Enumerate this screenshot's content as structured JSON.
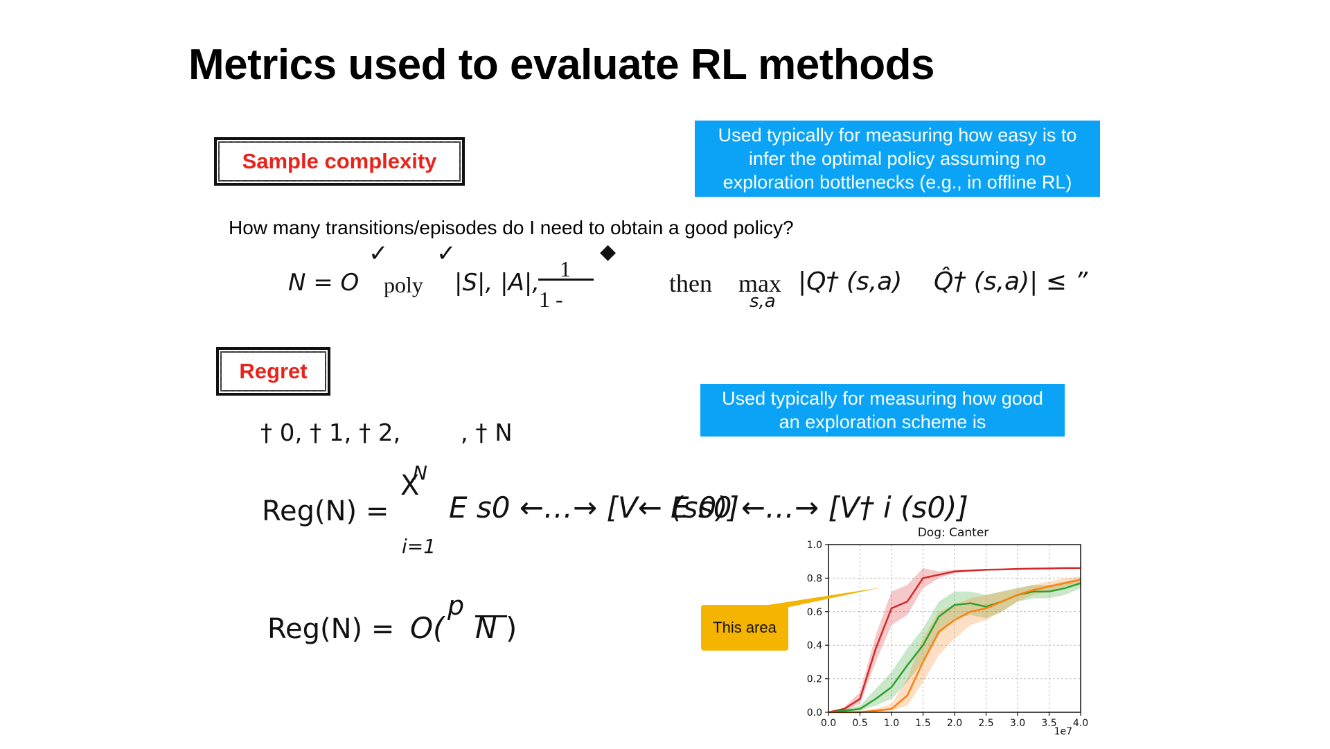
{
  "title": "Metrics used to evaluate RL methods",
  "sections": {
    "sample_complexity": {
      "label": "Sample complexity",
      "note": "Used typically for measuring how easy is to infer the optimal policy assuming no exploration bottlenecks (e.g., in offline RL)",
      "note_lines": [
        "Used typically for measuring how easy is to",
        "infer the optimal policy assuming no",
        "exploration bottlenecks (e.g., in offline RL)"
      ],
      "question": "How many transitions/episodes do I need to obtain a good policy?",
      "formula": {
        "lhs": "N = O",
        "poly": "poly",
        "args": "|S|, |A|,",
        "frac_num": "1",
        "frac_den": "1 -",
        "then": "then",
        "max": "max",
        "max_sub": "s,a",
        "rhs": "|Q† (s,a)    Q̂† (s,a)| ≤ ”",
        "marks": [
          "✓",
          "✓",
          "◆"
        ]
      }
    },
    "regret": {
      "label": "Regret",
      "note": "Used typically for measuring how good an exploration scheme is",
      "note_lines": [
        "Used typically for measuring how good",
        "an exploration scheme is"
      ],
      "sequence": "† 0, † 1, † 2,        , † N",
      "formula1": {
        "lhs": "Reg(N) =",
        "sum_top": "N",
        "sum_sym": "X",
        "sum_bottom": "i=1",
        "term1": "E s0 ←…→ [V← (s0)]",
        "term2": "E s0 ←…→ [V† i (s0)]"
      },
      "formula2": {
        "lhs": "Reg(N) =",
        "rhs": "O(",
        "sqrt_p": "p",
        "sqrt_arg": "N",
        "close": ")"
      }
    }
  },
  "callout": {
    "text": "This area",
    "color": "#f5b400"
  },
  "chart_data": {
    "type": "line",
    "title": "Dog: Canter",
    "xlabel": "",
    "ylabel": "",
    "x_multiplier_label": "1e7",
    "xlim": [
      0.0,
      4.0
    ],
    "ylim": [
      0.0,
      1.0
    ],
    "x_ticks": [
      "0.0",
      "0.5",
      "1.0",
      "1.5",
      "2.0",
      "2.5",
      "3.0",
      "3.5",
      "4.0"
    ],
    "y_ticks": [
      "0.0",
      "0.2",
      "0.4",
      "0.6",
      "0.8",
      "1.0"
    ],
    "grid": true,
    "x": [
      0.0,
      0.25,
      0.5,
      0.75,
      1.0,
      1.25,
      1.5,
      1.75,
      2.0,
      2.25,
      2.5,
      2.75,
      3.0,
      3.25,
      3.5,
      3.75,
      4.0
    ],
    "series": [
      {
        "color": "#d62728",
        "values": [
          0.0,
          0.02,
          0.08,
          0.38,
          0.62,
          0.66,
          0.8,
          0.82,
          0.84,
          0.845,
          0.85,
          0.852,
          0.855,
          0.857,
          0.858,
          0.86,
          0.86
        ],
        "lower": [
          0.0,
          0.01,
          0.05,
          0.3,
          0.52,
          0.58,
          0.74,
          0.8,
          0.83,
          0.84,
          0.845,
          0.85,
          0.852,
          0.855,
          0.856,
          0.858,
          0.858
        ],
        "upper": [
          0.0,
          0.03,
          0.12,
          0.46,
          0.72,
          0.76,
          0.86,
          0.84,
          0.85,
          0.85,
          0.855,
          0.856,
          0.858,
          0.86,
          0.861,
          0.862,
          0.862
        ]
      },
      {
        "color": "#2ca02c",
        "values": [
          0.0,
          0.01,
          0.02,
          0.08,
          0.15,
          0.28,
          0.4,
          0.57,
          0.64,
          0.65,
          0.63,
          0.66,
          0.7,
          0.72,
          0.72,
          0.74,
          0.77
        ],
        "lower": [
          0.0,
          0.0,
          0.01,
          0.04,
          0.08,
          0.18,
          0.3,
          0.46,
          0.56,
          0.58,
          0.56,
          0.6,
          0.66,
          0.68,
          0.68,
          0.7,
          0.74
        ],
        "upper": [
          0.0,
          0.02,
          0.04,
          0.14,
          0.24,
          0.38,
          0.5,
          0.66,
          0.72,
          0.72,
          0.7,
          0.72,
          0.74,
          0.76,
          0.76,
          0.78,
          0.8
        ]
      },
      {
        "color": "#ff7f0e",
        "values": [
          0.0,
          0.0,
          0.0,
          0.01,
          0.02,
          0.1,
          0.3,
          0.48,
          0.55,
          0.6,
          0.62,
          0.66,
          0.7,
          0.73,
          0.75,
          0.77,
          0.79
        ],
        "lower": [
          0.0,
          0.0,
          0.0,
          0.0,
          0.01,
          0.04,
          0.18,
          0.34,
          0.44,
          0.52,
          0.55,
          0.6,
          0.66,
          0.7,
          0.72,
          0.75,
          0.77
        ],
        "upper": [
          0.0,
          0.0,
          0.01,
          0.02,
          0.05,
          0.2,
          0.44,
          0.6,
          0.64,
          0.68,
          0.7,
          0.72,
          0.74,
          0.76,
          0.78,
          0.8,
          0.81
        ]
      }
    ]
  }
}
